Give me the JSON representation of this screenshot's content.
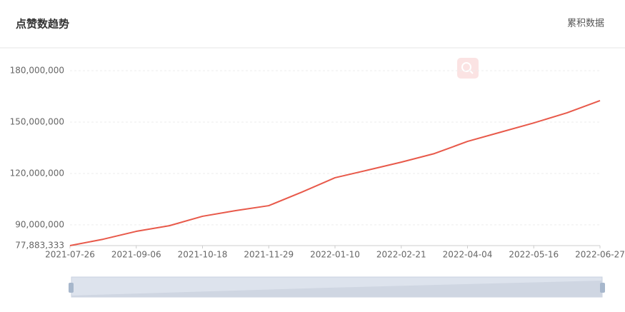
{
  "chart_data": {
    "type": "line",
    "title": "点赞数趋势",
    "toggle_label": "累积数据",
    "x": [
      "2021-07-26",
      "2021-08-16",
      "2021-09-06",
      "2021-09-27",
      "2021-10-18",
      "2021-11-08",
      "2021-11-29",
      "2021-12-20",
      "2022-01-10",
      "2022-01-31",
      "2022-02-21",
      "2022-03-14",
      "2022-04-04",
      "2022-04-25",
      "2022-05-16",
      "2022-06-06",
      "2022-06-27"
    ],
    "series": [
      {
        "name": "点赞数",
        "color": "#e8594a",
        "values": [
          77883333,
          81600000,
          86200000,
          89500000,
          95000000,
          98300000,
          101200000,
          109100000,
          117500000,
          122000000,
          126600000,
          131600000,
          138700000,
          144100000,
          149500000,
          155400000,
          162500000
        ]
      }
    ],
    "xlim": [
      "2021-07-26",
      "2022-06-27"
    ],
    "xticks": [
      "2021-07-26",
      "2021-09-06",
      "2021-10-18",
      "2021-11-29",
      "2022-01-10",
      "2022-02-21",
      "2022-04-04",
      "2022-05-16",
      "2022-06-27"
    ],
    "ylim": [
      77883333,
      180000000
    ],
    "yticks": [
      {
        "value": 77883333,
        "label": "77,883,333"
      },
      {
        "value": 90000000,
        "label": "90,000,000"
      },
      {
        "value": 120000000,
        "label": "120,000,000"
      },
      {
        "value": 150000000,
        "label": "150,000,000"
      },
      {
        "value": 180000000,
        "label": "180,000,000"
      }
    ],
    "grid": true
  }
}
